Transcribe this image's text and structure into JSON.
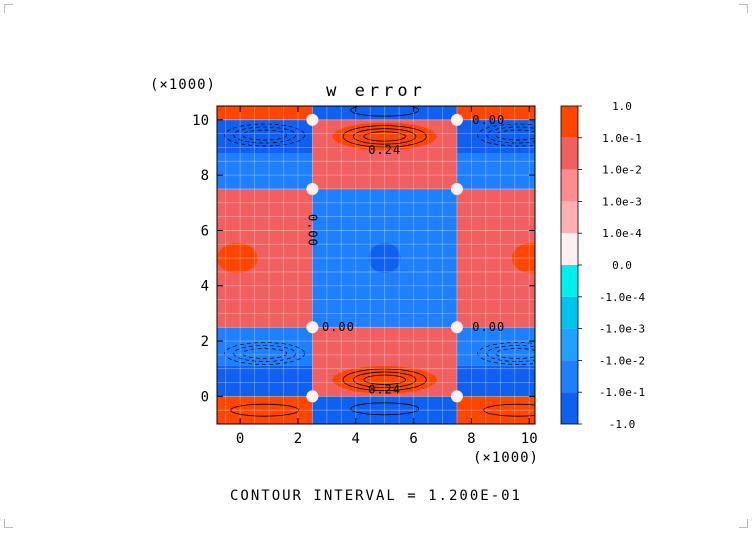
{
  "chart_data": {
    "type": "heatmap",
    "title": "w error",
    "footer": "CONTOUR INTERVAL = 1.200E-01",
    "x_scale_label": "(×1000)",
    "y_scale_label": "(×1000)",
    "x_range": [
      -0.8,
      10.2
    ],
    "y_range": [
      -1.0,
      10.5
    ],
    "x_ticks": [
      0,
      2,
      4,
      6,
      8,
      10
    ],
    "y_ticks": [
      0,
      2,
      4,
      6,
      8,
      10
    ],
    "x_tick_labels": [
      "0",
      "2",
      "4",
      "6",
      "8",
      "10"
    ],
    "y_tick_labels": [
      "0",
      "2",
      "4",
      "6",
      "8",
      "10"
    ],
    "grid": true,
    "colorbar": {
      "labels": [
        "1.0",
        "1.0e-1",
        "1.0e-2",
        "1.0e-3",
        "1.0e-4",
        "0.0",
        "-1.0e-4",
        "-1.0e-3",
        "-1.0e-2",
        "-1.0e-1",
        "-1.0"
      ],
      "colors": [
        "#ff4500",
        "#f06060",
        "#ff8c8c",
        "#ffb0b0",
        "#fff0f0",
        "#00eeee",
        "#00c4ee",
        "#20a0ff",
        "#1e80ff",
        "#0f5ff0"
      ]
    },
    "regions": [
      {
        "x": [
          -0.8,
          2.5
        ],
        "y": [
          -1.0,
          0.0
        ],
        "level": 0
      },
      {
        "x": [
          2.5,
          7.5
        ],
        "y": [
          -1.0,
          0.0
        ],
        "level": 9
      },
      {
        "x": [
          7.5,
          10.2
        ],
        "y": [
          -1.0,
          0.0
        ],
        "level": 0
      },
      {
        "x": [
          -0.8,
          2.5
        ],
        "y": [
          0.0,
          1.1
        ],
        "level": 9
      },
      {
        "x": [
          -0.8,
          2.5
        ],
        "y": [
          1.1,
          2.5
        ],
        "level": 8
      },
      {
        "x": [
          2.5,
          7.5
        ],
        "y": [
          0.0,
          2.5
        ],
        "level": 1
      },
      {
        "x": [
          7.5,
          10.2
        ],
        "y": [
          0.0,
          1.1
        ],
        "level": 9
      },
      {
        "x": [
          7.5,
          10.2
        ],
        "y": [
          1.1,
          2.5
        ],
        "level": 8
      },
      {
        "x": [
          -0.8,
          2.5
        ],
        "y": [
          2.5,
          7.5
        ],
        "level": 1
      },
      {
        "x": [
          2.5,
          7.5
        ],
        "y": [
          2.5,
          7.5
        ],
        "level": 8
      },
      {
        "x": [
          7.5,
          10.2
        ],
        "y": [
          2.5,
          7.5
        ],
        "level": 1
      },
      {
        "x": [
          -0.8,
          2.5
        ],
        "y": [
          7.5,
          8.8
        ],
        "level": 8
      },
      {
        "x": [
          -0.8,
          2.5
        ],
        "y": [
          8.8,
          10.0
        ],
        "level": 9
      },
      {
        "x": [
          2.5,
          7.5
        ],
        "y": [
          7.5,
          10.0
        ],
        "level": 1
      },
      {
        "x": [
          7.5,
          10.2
        ],
        "y": [
          7.5,
          8.8
        ],
        "level": 8
      },
      {
        "x": [
          7.5,
          10.2
        ],
        "y": [
          8.8,
          10.0
        ],
        "level": 9
      },
      {
        "x": [
          -0.8,
          2.5
        ],
        "y": [
          10.0,
          10.5
        ],
        "level": 0
      },
      {
        "x": [
          2.5,
          7.5
        ],
        "y": [
          10.0,
          10.5
        ],
        "level": 9
      },
      {
        "x": [
          7.5,
          10.2
        ],
        "y": [
          10.0,
          10.5
        ],
        "level": 0
      }
    ],
    "blobs": [
      {
        "x": 5.0,
        "y": 9.4,
        "rx": 1.8,
        "ry": 0.5,
        "level": 0
      },
      {
        "x": 5.0,
        "y": 0.6,
        "rx": 1.8,
        "ry": 0.5,
        "level": 0
      },
      {
        "x": 5.0,
        "y": 5.0,
        "rx": 0.55,
        "ry": 0.55,
        "level": 9
      },
      {
        "x": -0.1,
        "y": 5.0,
        "rx": 0.7,
        "ry": 0.55,
        "level": 0
      },
      {
        "x": 10.1,
        "y": 5.0,
        "rx": 0.7,
        "ry": 0.55,
        "level": 0
      }
    ],
    "contour_labels": [
      {
        "x": 5.0,
        "y": 8.9,
        "text": "0.24"
      },
      {
        "x": 5.0,
        "y": 0.25,
        "text": "0.24"
      },
      {
        "x": 3.4,
        "y": 2.5,
        "text": "0.00"
      },
      {
        "x": 8.6,
        "y": 2.5,
        "text": "0.00"
      },
      {
        "x": 8.6,
        "y": 10.0,
        "text": "0.00"
      },
      {
        "x": 2.5,
        "y": 6.0,
        "text": "0.00",
        "rotate": 90
      }
    ]
  }
}
